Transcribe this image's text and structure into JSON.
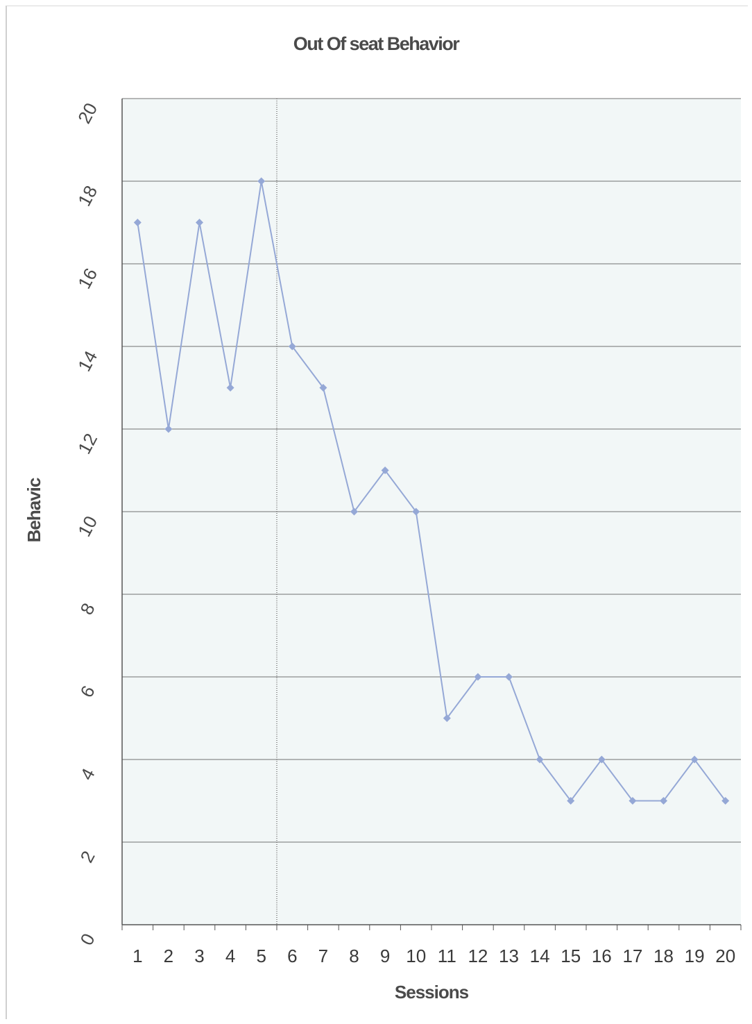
{
  "chart_data": {
    "type": "line",
    "title": "Out Of seat Behavior",
    "xlabel": "Sessions",
    "ylabel": "Behavic",
    "categories": [
      "1",
      "2",
      "3",
      "4",
      "5",
      "6",
      "7",
      "8",
      "9",
      "10",
      "11",
      "12",
      "13",
      "14",
      "15",
      "16",
      "17",
      "18",
      "19",
      "20"
    ],
    "series": [
      {
        "values": [
          17,
          12,
          17,
          13,
          18,
          14,
          13,
          10,
          11,
          10,
          5,
          6,
          6,
          4,
          3,
          4,
          3,
          3,
          4,
          3
        ],
        "color": "#95a8d6"
      }
    ],
    "ylim": [
      0,
      20
    ],
    "yticks": [
      0,
      2,
      4,
      6,
      8,
      10,
      12,
      14,
      16,
      18,
      20
    ],
    "grid": true,
    "phase_line_after": "5",
    "colors": {
      "plot_bg": "#f2f7f7",
      "grid": "#707070",
      "series": "#95a8d6",
      "text": "#4a4a4a"
    }
  }
}
